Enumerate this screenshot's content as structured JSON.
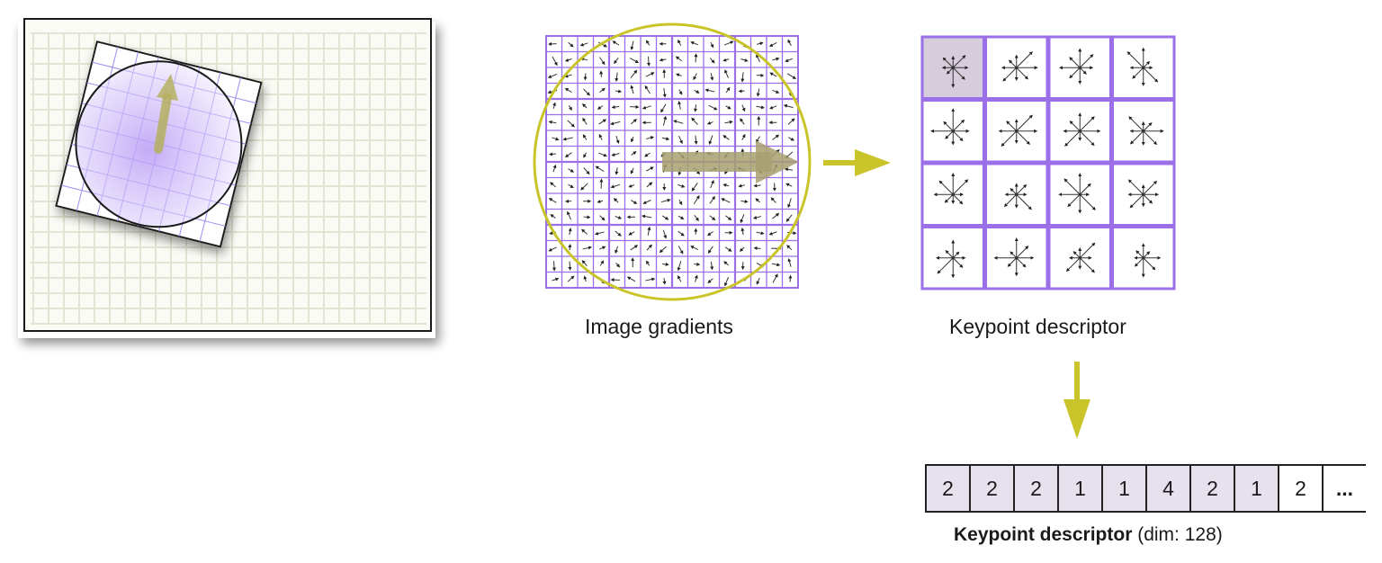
{
  "captions": {
    "image_gradients": "Image gradients",
    "keypoint_descriptor": "Keypoint descriptor"
  },
  "descriptor_vector": {
    "values": [
      "2",
      "2",
      "2",
      "1",
      "1",
      "4",
      "2",
      "1",
      "2",
      "..."
    ],
    "filled_count": 8,
    "caption_bold": "Keypoint descriptor",
    "caption_rest": " (dim: 128)"
  },
  "colors": {
    "grid_purple": "#9a6fe8",
    "circle_yellow": "#c9c42a",
    "arrow_olive": "#b5b060",
    "cell_fill": "#e7e1ee",
    "highlight_cell": "#d6ccdc"
  },
  "descriptor_grid": {
    "rows": 4,
    "cols": 4
  },
  "gradient_grid": {
    "rows": 16,
    "cols": 16
  }
}
